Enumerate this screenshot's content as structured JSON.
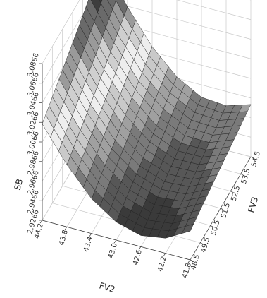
{
  "chart_data": {
    "type": "surface3d",
    "title": "",
    "xlabel": "FV2",
    "ylabel": "FV3",
    "zlabel": "SB",
    "x_ticks": [
      "44.2",
      "43.8",
      "43.4",
      "43.0",
      "42.6",
      "42.2",
      "41.8"
    ],
    "y_ticks": [
      "48.5",
      "49.5",
      "50.5",
      "51.5",
      "52.5",
      "53.5",
      "54.5"
    ],
    "z_ticks": [
      "2.9266",
      "2.9466",
      "2.9666",
      "2.9866",
      "3.0066",
      "3.0266",
      "3.0466",
      "3.0666",
      "3.0866"
    ],
    "xlim": [
      41.8,
      44.2
    ],
    "ylim": [
      48.5,
      54.5
    ],
    "zlim": [
      2.9266,
      3.0866
    ],
    "surface": {
      "shape": "saddle-shaped valley, lowest near middle of FV2 and low FV3, rising toward FV2 edges, peak near FV2=44.2 at high FV3",
      "x": [
        44.2,
        43.8,
        43.4,
        43.0,
        42.6,
        42.2,
        41.8
      ],
      "y": [
        48.5,
        49.5,
        50.5,
        51.5,
        52.5,
        53.5,
        54.5
      ],
      "z": [
        [
          3.025,
          3.035,
          3.045,
          3.055,
          3.065,
          3.076,
          3.087
        ],
        [
          2.99,
          2.999,
          3.008,
          3.017,
          3.026,
          3.036,
          3.046
        ],
        [
          2.962,
          2.97,
          2.978,
          2.986,
          2.995,
          3.003,
          3.012
        ],
        [
          2.945,
          2.952,
          2.959,
          2.966,
          2.973,
          2.981,
          2.988
        ],
        [
          2.938,
          2.944,
          2.95,
          2.956,
          2.962,
          2.968,
          2.974
        ],
        [
          2.942,
          2.947,
          2.952,
          2.957,
          2.962,
          2.967,
          2.972
        ],
        [
          2.956,
          2.96,
          2.964,
          2.968,
          2.972,
          2.976,
          2.98
        ]
      ]
    },
    "grid": true,
    "legend": "none"
  }
}
